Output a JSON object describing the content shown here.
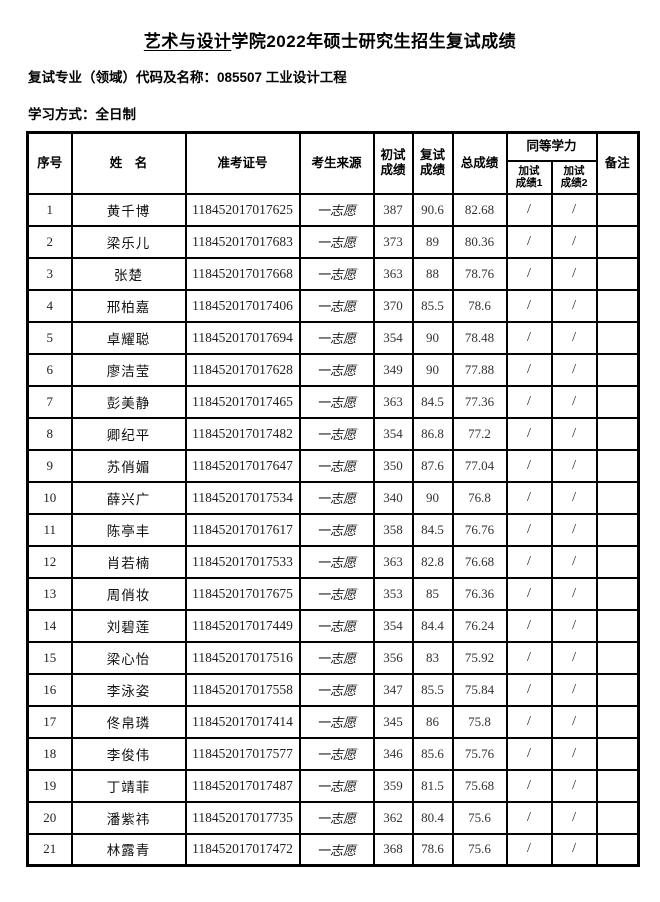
{
  "title": {
    "underlined_part": "艺术与设计",
    "rest": "学院2022年硕士研究生招生复试成绩"
  },
  "meta": {
    "major_line": "复试专业（领域）代码及名称：085507 工业设计工程",
    "study_mode_line": "学习方式：全日制"
  },
  "table": {
    "headers": {
      "index": "序号",
      "name": "姓　名",
      "ticket": "准考证号",
      "source": "考生来源",
      "initial_l1": "初试",
      "initial_l2": "成绩",
      "retest_l1": "复试",
      "retest_l2": "成绩",
      "total": "总成绩",
      "equivalent": "同等学力",
      "extra1_l1": "加试",
      "extra1_l2": "成绩1",
      "extra2_l1": "加试",
      "extra2_l2": "成绩2",
      "remark": "备注"
    },
    "rows": [
      {
        "index": "1",
        "name": "黄千博",
        "ticket": "118452017017625",
        "source": "一志愿",
        "initial": "387",
        "retest": "90.6",
        "total": "82.68",
        "extra1": "/",
        "extra2": "/",
        "remark": ""
      },
      {
        "index": "2",
        "name": "梁乐儿",
        "ticket": "118452017017683",
        "source": "一志愿",
        "initial": "373",
        "retest": "89",
        "total": "80.36",
        "extra1": "/",
        "extra2": "/",
        "remark": ""
      },
      {
        "index": "3",
        "name": "张楚",
        "ticket": "118452017017668",
        "source": "一志愿",
        "initial": "363",
        "retest": "88",
        "total": "78.76",
        "extra1": "/",
        "extra2": "/",
        "remark": ""
      },
      {
        "index": "4",
        "name": "邢柏嘉",
        "ticket": "118452017017406",
        "source": "一志愿",
        "initial": "370",
        "retest": "85.5",
        "total": "78.6",
        "extra1": "/",
        "extra2": "/",
        "remark": ""
      },
      {
        "index": "5",
        "name": "卓耀聪",
        "ticket": "118452017017694",
        "source": "一志愿",
        "initial": "354",
        "retest": "90",
        "total": "78.48",
        "extra1": "/",
        "extra2": "/",
        "remark": ""
      },
      {
        "index": "6",
        "name": "廖洁莹",
        "ticket": "118452017017628",
        "source": "一志愿",
        "initial": "349",
        "retest": "90",
        "total": "77.88",
        "extra1": "/",
        "extra2": "/",
        "remark": ""
      },
      {
        "index": "7",
        "name": "彭美静",
        "ticket": "118452017017465",
        "source": "一志愿",
        "initial": "363",
        "retest": "84.5",
        "total": "77.36",
        "extra1": "/",
        "extra2": "/",
        "remark": ""
      },
      {
        "index": "8",
        "name": "卿纪平",
        "ticket": "118452017017482",
        "source": "一志愿",
        "initial": "354",
        "retest": "86.8",
        "total": "77.2",
        "extra1": "/",
        "extra2": "/",
        "remark": ""
      },
      {
        "index": "9",
        "name": "苏俏媚",
        "ticket": "118452017017647",
        "source": "一志愿",
        "initial": "350",
        "retest": "87.6",
        "total": "77.04",
        "extra1": "/",
        "extra2": "/",
        "remark": ""
      },
      {
        "index": "10",
        "name": "薛兴广",
        "ticket": "118452017017534",
        "source": "一志愿",
        "initial": "340",
        "retest": "90",
        "total": "76.8",
        "extra1": "/",
        "extra2": "/",
        "remark": ""
      },
      {
        "index": "11",
        "name": "陈亭丰",
        "ticket": "118452017017617",
        "source": "一志愿",
        "initial": "358",
        "retest": "84.5",
        "total": "76.76",
        "extra1": "/",
        "extra2": "/",
        "remark": ""
      },
      {
        "index": "12",
        "name": "肖若楠",
        "ticket": "118452017017533",
        "source": "一志愿",
        "initial": "363",
        "retest": "82.8",
        "total": "76.68",
        "extra1": "/",
        "extra2": "/",
        "remark": ""
      },
      {
        "index": "13",
        "name": "周俏妆",
        "ticket": "118452017017675",
        "source": "一志愿",
        "initial": "353",
        "retest": "85",
        "total": "76.36",
        "extra1": "/",
        "extra2": "/",
        "remark": ""
      },
      {
        "index": "14",
        "name": "刘碧莲",
        "ticket": "118452017017449",
        "source": "一志愿",
        "initial": "354",
        "retest": "84.4",
        "total": "76.24",
        "extra1": "/",
        "extra2": "/",
        "remark": ""
      },
      {
        "index": "15",
        "name": "梁心怡",
        "ticket": "118452017017516",
        "source": "一志愿",
        "initial": "356",
        "retest": "83",
        "total": "75.92",
        "extra1": "/",
        "extra2": "/",
        "remark": ""
      },
      {
        "index": "16",
        "name": "李泳姿",
        "ticket": "118452017017558",
        "source": "一志愿",
        "initial": "347",
        "retest": "85.5",
        "total": "75.84",
        "extra1": "/",
        "extra2": "/",
        "remark": ""
      },
      {
        "index": "17",
        "name": "佟帛璘",
        "ticket": "118452017017414",
        "source": "一志愿",
        "initial": "345",
        "retest": "86",
        "total": "75.8",
        "extra1": "/",
        "extra2": "/",
        "remark": ""
      },
      {
        "index": "18",
        "name": "李俊伟",
        "ticket": "118452017017577",
        "source": "一志愿",
        "initial": "346",
        "retest": "85.6",
        "total": "75.76",
        "extra1": "/",
        "extra2": "/",
        "remark": ""
      },
      {
        "index": "19",
        "name": "丁靖菲",
        "ticket": "118452017017487",
        "source": "一志愿",
        "initial": "359",
        "retest": "81.5",
        "total": "75.68",
        "extra1": "/",
        "extra2": "/",
        "remark": ""
      },
      {
        "index": "20",
        "name": "潘紫祎",
        "ticket": "118452017017735",
        "source": "一志愿",
        "initial": "362",
        "retest": "80.4",
        "total": "75.6",
        "extra1": "/",
        "extra2": "/",
        "remark": ""
      },
      {
        "index": "21",
        "name": "林露青",
        "ticket": "118452017017472",
        "source": "一志愿",
        "initial": "368",
        "retest": "78.6",
        "total": "75.6",
        "extra1": "/",
        "extra2": "/",
        "remark": ""
      }
    ]
  },
  "colors": {
    "text": "#000000",
    "border": "#000000",
    "background": "#ffffff"
  }
}
